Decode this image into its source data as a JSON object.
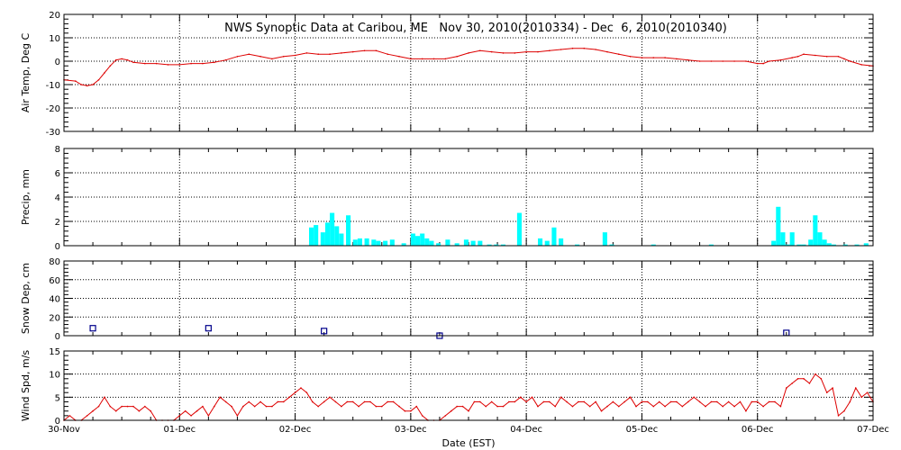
{
  "title": "NWS Synoptic Data at Caribou, ME   Nov 30, 2010(2010334) - Dec  6, 2010(2010340)",
  "xlabel": "Date (EST)",
  "x_tick_labels": [
    "30-Nov",
    "01-Dec",
    "02-Dec",
    "03-Dec",
    "04-Dec",
    "05-Dec",
    "06-Dec",
    "07-Dec"
  ],
  "colors": {
    "line": "#dd0000",
    "precip": "#00ffff",
    "snow": "#00008b",
    "frame": "#000000"
  },
  "chart_data": [
    {
      "type": "line",
      "panel": "air_temp",
      "ylabel": "Air Temp, Deg C",
      "ylim": [
        -30,
        20
      ],
      "yticks": [
        -30,
        -20,
        -10,
        0,
        10,
        20
      ],
      "x_unit": "days since 30-Nov 00:00 EST",
      "x": [
        0,
        0.1,
        0.15,
        0.2,
        0.25,
        0.3,
        0.35,
        0.4,
        0.45,
        0.5,
        0.55,
        0.6,
        0.7,
        0.8,
        0.9,
        1.0,
        1.1,
        1.2,
        1.3,
        1.4,
        1.5,
        1.6,
        1.7,
        1.8,
        1.9,
        2.0,
        2.1,
        2.2,
        2.3,
        2.4,
        2.5,
        2.6,
        2.7,
        2.8,
        2.9,
        3.0,
        3.1,
        3.2,
        3.3,
        3.4,
        3.5,
        3.6,
        3.7,
        3.8,
        3.9,
        4.0,
        4.1,
        4.2,
        4.3,
        4.4,
        4.5,
        4.6,
        4.7,
        4.8,
        4.9,
        5.0,
        5.1,
        5.2,
        5.3,
        5.4,
        5.5,
        5.6,
        5.7,
        5.8,
        5.9,
        6.0,
        6.05,
        6.1,
        6.2,
        6.3,
        6.35,
        6.4,
        6.5,
        6.6,
        6.7,
        6.75,
        6.8,
        6.9,
        7.0
      ],
      "y": [
        -8,
        -8.5,
        -10,
        -10.5,
        -10,
        -8,
        -5,
        -2,
        0.5,
        1,
        0.5,
        -0.5,
        -1,
        -1,
        -1.5,
        -1.5,
        -1,
        -1,
        -0.5,
        0.5,
        2,
        3,
        2,
        1,
        2,
        2.5,
        3.5,
        3,
        3,
        3.5,
        4,
        4.5,
        4.5,
        3,
        2,
        1,
        1,
        1,
        1,
        2,
        3.5,
        4.5,
        4,
        3.5,
        3.5,
        4,
        4,
        4.5,
        5,
        5.5,
        5.5,
        5,
        4,
        3,
        2,
        1.5,
        1.5,
        1.5,
        1,
        0.5,
        0,
        0,
        0,
        0,
        0,
        -1,
        -1,
        0,
        0.5,
        1.5,
        2,
        3,
        2.5,
        2,
        2,
        1,
        0,
        -1.5,
        -2
      ]
    },
    {
      "type": "bar",
      "panel": "precip",
      "ylabel": "Precip, mm",
      "ylim": [
        0,
        8
      ],
      "yticks": [
        0,
        2,
        4,
        6,
        8
      ],
      "x_unit": "days since 30-Nov 00:00 EST",
      "x": [
        2.14,
        2.18,
        2.24,
        2.28,
        2.32,
        2.36,
        2.4,
        2.46,
        2.52,
        2.56,
        2.62,
        2.68,
        2.72,
        2.78,
        2.84,
        2.94,
        3.02,
        3.06,
        3.1,
        3.14,
        3.18,
        3.24,
        3.32,
        3.4,
        3.48,
        3.54,
        3.6,
        3.68,
        3.74,
        3.8,
        3.94,
        4.12,
        4.18,
        4.24,
        4.3,
        4.44,
        4.68,
        4.74,
        5.1,
        5.6,
        6.14,
        6.18,
        6.22,
        6.26,
        6.3,
        6.36,
        6.4,
        6.46,
        6.5,
        6.54,
        6.58,
        6.62,
        6.66,
        6.76,
        6.86,
        6.94
      ],
      "values": [
        1.5,
        1.7,
        1.1,
        1.9,
        2.7,
        1.6,
        1.0,
        2.5,
        0.5,
        0.6,
        0.6,
        0.5,
        0.4,
        0.4,
        0.5,
        0.2,
        1.0,
        0.8,
        1.0,
        0.6,
        0.4,
        0.2,
        0.5,
        0.2,
        0.5,
        0.4,
        0.4,
        0.1,
        0.1,
        0.1,
        2.7,
        0.6,
        0.4,
        1.5,
        0.6,
        0.1,
        1.1,
        0.1,
        0.1,
        0.1,
        0.4,
        3.2,
        1.1,
        0.1,
        1.1,
        0.1,
        0.1,
        0.5,
        2.5,
        1.1,
        0.5,
        0.2,
        0.1,
        0.1,
        0.1,
        0.2
      ]
    },
    {
      "type": "scatter",
      "panel": "snow_depth",
      "ylabel": "Snow Dep, cm",
      "ylim": [
        0,
        80
      ],
      "yticks": [
        0,
        20,
        40,
        60,
        80
      ],
      "x_unit": "days since 30-Nov 00:00 EST",
      "x": [
        0.25,
        1.25,
        2.25,
        3.25,
        6.25
      ],
      "y": [
        8,
        8,
        5,
        0,
        3
      ]
    },
    {
      "type": "line",
      "panel": "wind_speed",
      "ylabel": "Wind Spd, m/s",
      "ylim": [
        0,
        15
      ],
      "yticks": [
        0,
        5,
        10,
        15
      ],
      "x_unit": "days since 30-Nov 00:00 EST",
      "x": [
        0,
        0.05,
        0.1,
        0.15,
        0.2,
        0.25,
        0.3,
        0.35,
        0.4,
        0.45,
        0.5,
        0.55,
        0.6,
        0.65,
        0.7,
        0.75,
        0.8,
        0.85,
        0.9,
        0.95,
        1.0,
        1.05,
        1.1,
        1.15,
        1.2,
        1.25,
        1.3,
        1.35,
        1.4,
        1.45,
        1.5,
        1.55,
        1.6,
        1.65,
        1.7,
        1.75,
        1.8,
        1.85,
        1.9,
        1.95,
        2.0,
        2.05,
        2.1,
        2.15,
        2.2,
        2.25,
        2.3,
        2.35,
        2.4,
        2.45,
        2.5,
        2.55,
        2.6,
        2.65,
        2.7,
        2.75,
        2.8,
        2.85,
        2.9,
        2.95,
        3.0,
        3.05,
        3.1,
        3.15,
        3.2,
        3.25,
        3.3,
        3.35,
        3.4,
        3.45,
        3.5,
        3.55,
        3.6,
        3.65,
        3.7,
        3.75,
        3.8,
        3.85,
        3.9,
        3.95,
        4.0,
        4.05,
        4.1,
        4.15,
        4.2,
        4.25,
        4.3,
        4.35,
        4.4,
        4.45,
        4.5,
        4.55,
        4.6,
        4.65,
        4.7,
        4.75,
        4.8,
        4.85,
        4.9,
        4.95,
        5.0,
        5.05,
        5.1,
        5.15,
        5.2,
        5.25,
        5.3,
        5.35,
        5.4,
        5.45,
        5.5,
        5.55,
        5.6,
        5.65,
        5.7,
        5.75,
        5.8,
        5.85,
        5.9,
        5.95,
        6.0,
        6.05,
        6.1,
        6.15,
        6.2,
        6.25,
        6.3,
        6.35,
        6.4,
        6.45,
        6.5,
        6.55,
        6.6,
        6.65,
        6.7,
        6.75,
        6.8,
        6.85,
        6.9,
        6.95,
        7.0
      ],
      "y": [
        0,
        1,
        0,
        0,
        1,
        2,
        3,
        5,
        3,
        2,
        3,
        3,
        3,
        2,
        3,
        2,
        0,
        0,
        0,
        0,
        1,
        2,
        1,
        2,
        3,
        1,
        3,
        5,
        4,
        3,
        1,
        3,
        4,
        3,
        4,
        3,
        3,
        4,
        4,
        5,
        6,
        7,
        6,
        4,
        3,
        4,
        5,
        4,
        3,
        4,
        4,
        3,
        4,
        4,
        3,
        3,
        4,
        4,
        3,
        2,
        2,
        3,
        1,
        0,
        0,
        0,
        1,
        2,
        3,
        3,
        2,
        4,
        4,
        3,
        4,
        3,
        3,
        4,
        4,
        5,
        4,
        5,
        3,
        4,
        4,
        3,
        5,
        4,
        3,
        4,
        4,
        3,
        4,
        2,
        3,
        4,
        3,
        4,
        5,
        3,
        4,
        4,
        3,
        4,
        3,
        4,
        4,
        3,
        4,
        5,
        4,
        3,
        4,
        4,
        3,
        4,
        3,
        4,
        2,
        4,
        4,
        3,
        4,
        4,
        3,
        7,
        8,
        9,
        9,
        8,
        10,
        9,
        6,
        7,
        1,
        2,
        4,
        7,
        5,
        6,
        4
      ]
    }
  ]
}
